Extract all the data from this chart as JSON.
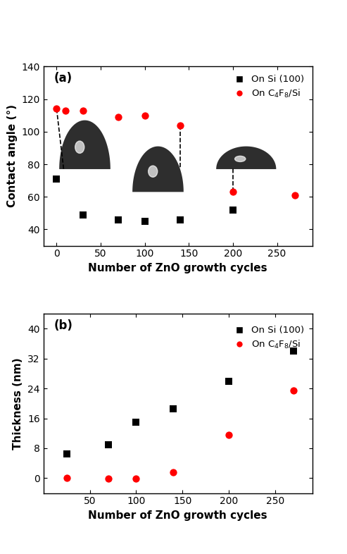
{
  "panel_a": {
    "label": "(a)",
    "si_x": [
      0,
      30,
      70,
      100,
      140,
      200,
      270
    ],
    "si_y": [
      71,
      49,
      46,
      45,
      46,
      52,
      null
    ],
    "fc_x": [
      0,
      10,
      30,
      70,
      100,
      140,
      200,
      270
    ],
    "fc_y": [
      114,
      113,
      113,
      109,
      110,
      104,
      63,
      61
    ],
    "ylabel": "Contact angle (°)",
    "xlabel": "Number of ZnO growth cycles",
    "ylim": [
      30,
      140
    ],
    "yticks": [
      40,
      60,
      80,
      100,
      120,
      140
    ],
    "xlim": [
      -15,
      290
    ],
    "xticks": [
      0,
      50,
      100,
      150,
      200,
      250
    ],
    "dashed_lines": [
      {
        "x1": 0,
        "y1": 114,
        "x2": 8,
        "y2": 77
      },
      {
        "x1": 140,
        "y1": 104,
        "x2": 140,
        "y2": 78
      },
      {
        "x1": 200,
        "y1": 63,
        "x2": 200,
        "y2": 78
      }
    ]
  },
  "panel_b": {
    "label": "(b)",
    "si_x": [
      25,
      70,
      100,
      140,
      200,
      270
    ],
    "si_y": [
      6.5,
      9.0,
      15.0,
      18.5,
      26.0,
      34.0
    ],
    "fc_x": [
      25,
      70,
      100,
      140,
      200,
      270
    ],
    "fc_y": [
      0.0,
      -0.2,
      -0.2,
      1.5,
      11.5,
      23.5
    ],
    "ylabel": "Thickness (nm)",
    "xlabel": "Number of ZnO growth cycles",
    "ylim": [
      -4,
      44
    ],
    "yticks": [
      0,
      8,
      16,
      24,
      32,
      40
    ],
    "xlim": [
      0,
      290
    ],
    "xticks": [
      50,
      100,
      150,
      200,
      250
    ]
  },
  "legend_si_label": "On Si (100)",
  "legend_fc_label": "On C$_4$F$_8$/Si",
  "si_color": "#000000",
  "fc_color": "#ff0000",
  "marker_si": "s",
  "marker_fc": "o",
  "marker_size": 55,
  "bg_color": "#ffffff",
  "font_size_label": 11,
  "font_size_tick": 10,
  "font_size_legend": 9.5,
  "font_size_panel": 12
}
